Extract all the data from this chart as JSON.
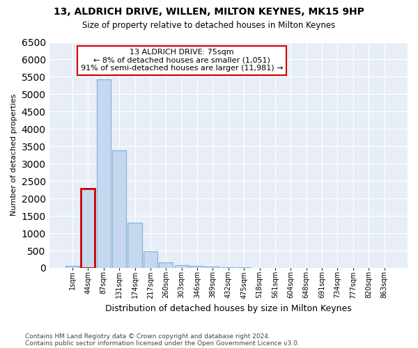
{
  "title1": "13, ALDRICH DRIVE, WILLEN, MILTON KEYNES, MK15 9HP",
  "title2": "Size of property relative to detached houses in Milton Keynes",
  "xlabel": "Distribution of detached houses by size in Milton Keynes",
  "ylabel": "Number of detached properties",
  "footer1": "Contains HM Land Registry data © Crown copyright and database right 2024.",
  "footer2": "Contains public sector information licensed under the Open Government Licence v3.0.",
  "annotation_line1": "13 ALDRICH DRIVE: 75sqm",
  "annotation_line2": "← 8% of detached houses are smaller (1,051)",
  "annotation_line3": "91% of semi-detached houses are larger (11,981) →",
  "bar_labels": [
    "1sqm",
    "44sqm",
    "87sqm",
    "131sqm",
    "174sqm",
    "217sqm",
    "260sqm",
    "303sqm",
    "346sqm",
    "389sqm",
    "432sqm",
    "475sqm",
    "518sqm",
    "561sqm",
    "604sqm",
    "648sqm",
    "691sqm",
    "734sqm",
    "777sqm",
    "820sqm",
    "863sqm"
  ],
  "bar_values": [
    60,
    2280,
    5420,
    3390,
    1310,
    480,
    165,
    90,
    60,
    45,
    30,
    20,
    0,
    0,
    0,
    0,
    0,
    0,
    0,
    0,
    0
  ],
  "bar_color": "#c5d8f0",
  "bar_edge_color": "#7fafd4",
  "highlight_bar_index": 1,
  "highlight_color": "#cc0000",
  "annotation_box_color": "#ffffff",
  "annotation_box_edge": "#cc0000",
  "background_color": "#e8eef8",
  "grid_color": "#ffffff",
  "ylim": [
    0,
    6500
  ],
  "yticks": [
    0,
    500,
    1000,
    1500,
    2000,
    2500,
    3000,
    3500,
    4000,
    4500,
    5000,
    5500,
    6000,
    6500
  ]
}
